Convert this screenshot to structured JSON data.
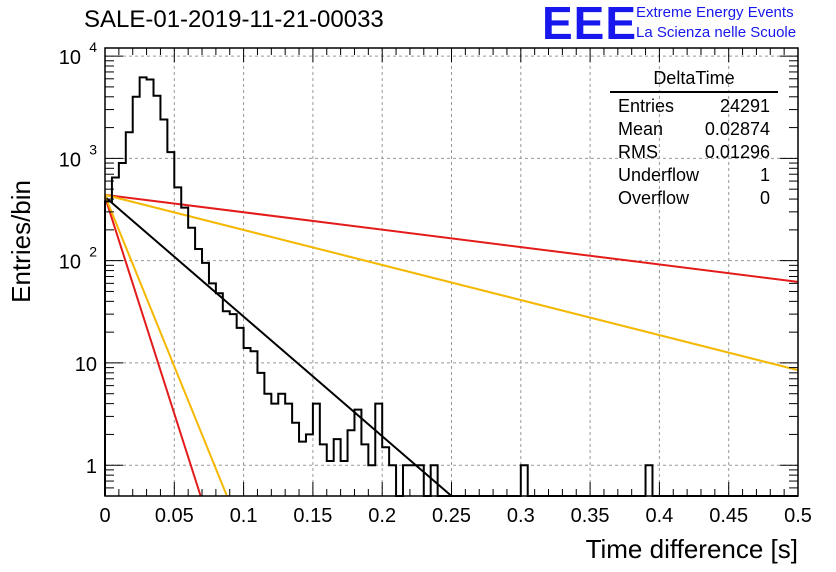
{
  "title": "SALE-01-2019-11-21-00033",
  "logo": {
    "text": "EEE",
    "line1": "Extreme Energy Events",
    "line2": "La Scienza nelle Scuole",
    "color": "#1818ee"
  },
  "stats": {
    "name": "DeltaTime",
    "rows": [
      {
        "label": "Entries",
        "value": "24291"
      },
      {
        "label": "Mean",
        "value": "0.02874"
      },
      {
        "label": "RMS",
        "value": "0.01296"
      },
      {
        "label": "Underflow",
        "value": "1"
      },
      {
        "label": "Overflow",
        "value": "0"
      }
    ]
  },
  "chart_data": {
    "type": "line",
    "xlabel": "Time difference [s]",
    "ylabel": "Entries/bin",
    "xlim": [
      0,
      0.5
    ],
    "ylim": [
      0.5,
      12000
    ],
    "y_scale": "log",
    "grid": true,
    "x_ticks": [
      "0",
      "0.05",
      "0.1",
      "0.15",
      "0.2",
      "0.25",
      "0.3",
      "0.35",
      "0.4",
      "0.45",
      "0.5"
    ],
    "y_ticks": [
      {
        "value": 1,
        "label": "1"
      },
      {
        "value": 10,
        "label": "10"
      },
      {
        "value": 100,
        "label": "10",
        "exp": "2"
      },
      {
        "value": 1000,
        "label": "10",
        "exp": "3"
      },
      {
        "value": 10000,
        "label": "10",
        "exp": "4"
      }
    ],
    "histogram": {
      "name": "DeltaTime",
      "color": "#000000",
      "bin_width": 0.005,
      "x_start": 0,
      "counts": [
        380,
        650,
        900,
        1800,
        4000,
        6200,
        5900,
        4100,
        2400,
        1150,
        520,
        330,
        210,
        130,
        95,
        60,
        48,
        32,
        30,
        22,
        14,
        13,
        8,
        5,
        4,
        5,
        4,
        2.6,
        1.7,
        2,
        4,
        1.6,
        1.1,
        1.8,
        1.1,
        2.2,
        3.5,
        1.6,
        1,
        4,
        1.5,
        1,
        0,
        1,
        1,
        1,
        0,
        1,
        0,
        0,
        0,
        0,
        0,
        0,
        0,
        0,
        0,
        0,
        0,
        0,
        1,
        0,
        0,
        0,
        0,
        0,
        0,
        0,
        0,
        0,
        0,
        0,
        0,
        0,
        0,
        0,
        0,
        0,
        1,
        0,
        0,
        0,
        0,
        0,
        0,
        0,
        0,
        0,
        0,
        0,
        0,
        0,
        0,
        0,
        0,
        0,
        0,
        0,
        0,
        0
      ]
    },
    "fits": [
      {
        "color": "#000000",
        "x": [
          0,
          0.25
        ],
        "y": [
          420,
          0.5
        ]
      },
      {
        "color": "#e31b1b",
        "x": [
          0,
          0.5
        ],
        "y": [
          440,
          62
        ]
      },
      {
        "color": "#f5b800",
        "x": [
          0,
          0.5
        ],
        "y": [
          440,
          8.5
        ]
      },
      {
        "color": "#e31b1b",
        "x": [
          0,
          0.069
        ],
        "y": [
          420,
          0.5
        ]
      },
      {
        "color": "#f5b800",
        "x": [
          0,
          0.088
        ],
        "y": [
          430,
          0.5
        ]
      }
    ]
  }
}
